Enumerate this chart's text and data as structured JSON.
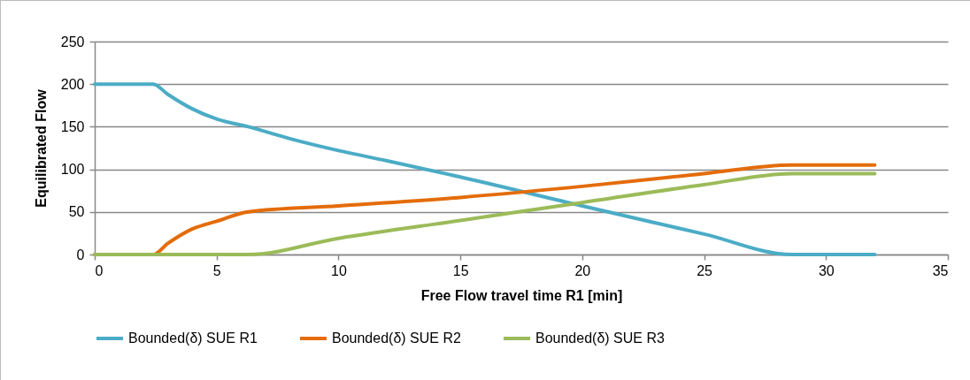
{
  "chart_data": {
    "type": "line",
    "xlabel": "Free Flow travel time R1 [min]",
    "ylabel": "Equilibrated Flow",
    "xlim": [
      0,
      35
    ],
    "xticks": [
      0,
      5,
      10,
      15,
      20,
      25,
      30,
      35
    ],
    "ylim": [
      0,
      250
    ],
    "yticks": [
      0,
      50,
      100,
      150,
      200,
      250
    ],
    "grid": "y",
    "legend": "bottom",
    "marker": "none",
    "line_style": "solid",
    "series": [
      {
        "name": "Bounded(δ) SUE R1",
        "color": "#4bacc6",
        "x": [
          0,
          2.4,
          3,
          4,
          5,
          6.3,
          8,
          10,
          12,
          15,
          20,
          25,
          28.6,
          32
        ],
        "values": [
          200,
          200,
          188,
          171,
          159,
          150,
          136,
          122,
          110,
          91,
          57,
          24,
          0,
          0
        ]
      },
      {
        "name": "Bounded(δ) SUE R2",
        "color": "#e46c0a",
        "x": [
          0,
          2.4,
          3,
          4,
          5,
          6.3,
          10,
          15,
          20,
          25,
          28.6,
          32
        ],
        "values": [
          0,
          0,
          13,
          30,
          39,
          50,
          57,
          67,
          80,
          95,
          105,
          105
        ]
      },
      {
        "name": "Bounded(δ) SUE R3",
        "color": "#9bbb59",
        "x": [
          0,
          6.3,
          10,
          15,
          20,
          25,
          28.6,
          32
        ],
        "values": [
          0,
          0,
          19,
          40,
          61,
          82,
          95,
          95
        ]
      }
    ]
  }
}
